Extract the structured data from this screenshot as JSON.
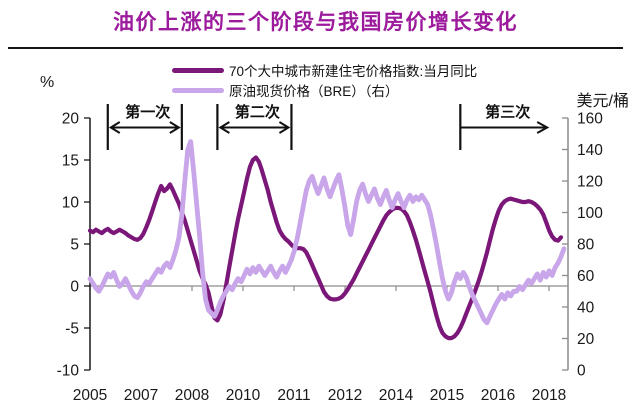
{
  "title": "油价上涨的三个阶段与我国房价增长变化",
  "legend": [
    {
      "label": "70个大中城市新建住宅价格指数:当月同比"
    },
    {
      "label": "原油现货价格（BRE）（右）"
    }
  ],
  "axes": {
    "left_unit": "%",
    "right_unit": "美元/桶",
    "left_ticks": [
      20,
      15,
      10,
      5,
      0,
      -5,
      -10
    ],
    "right_ticks": [
      160,
      140,
      120,
      100,
      80,
      60,
      40,
      20,
      0
    ],
    "x_labels": [
      "2005",
      "2007",
      "2008",
      "2010",
      "2011",
      "2012",
      "2014",
      "2015",
      "2016",
      "2018"
    ]
  },
  "annotations": [
    {
      "label": "第一次",
      "type": "double",
      "x1_month": 6,
      "x2_month": 31
    },
    {
      "label": "第二次",
      "type": "double",
      "x1_month": 43,
      "x2_month": 68
    },
    {
      "label": "第三次",
      "type": "right",
      "x1_month": 125,
      "x2_month": 155
    }
  ],
  "colors": {
    "title": "#9c1a9c",
    "house_series": "#7a1778",
    "oil_series": "#c8a6e9",
    "axis_black": "#1a1a1a",
    "axis_gray": "#8c8c8c",
    "annotation": "#111111"
  },
  "chart_data": {
    "type": "line",
    "title": "油价上涨的三个阶段与我国房价增长变化",
    "x_start_year": 2005,
    "frequency": "monthly",
    "x_tick_labels": [
      "2005",
      "2007",
      "2008",
      "2010",
      "2011",
      "2012",
      "2014",
      "2015",
      "2016",
      "2018"
    ],
    "ylabel_left": "%",
    "ylabel_right": "美元/桶",
    "ylim_left": [
      -10,
      20
    ],
    "ylim_right": [
      0,
      160
    ],
    "legend_position": "top",
    "grid": false,
    "series": [
      {
        "name": "70个大中城市新建住宅价格指数:当月同比",
        "axis": "left",
        "unit": "%",
        "values": [
          6.6,
          6.4,
          6.7,
          6.5,
          6.3,
          6.6,
          6.8,
          6.5,
          6.3,
          6.5,
          6.7,
          6.5,
          6.3,
          6.0,
          5.8,
          5.6,
          5.5,
          5.7,
          6.2,
          7.0,
          7.9,
          8.9,
          10.0,
          11.0,
          11.9,
          11.3,
          11.6,
          12.1,
          11.4,
          10.6,
          9.8,
          8.8,
          7.8,
          6.6,
          5.4,
          4.2,
          3.0,
          1.8,
          0.9,
          0.2,
          -0.8,
          -2.4,
          -3.8,
          -4.1,
          -3.4,
          -1.8,
          0.2,
          2.2,
          4.2,
          6.2,
          8.0,
          9.6,
          11.2,
          12.8,
          14.2,
          15.0,
          15.3,
          14.8,
          13.8,
          12.6,
          11.4,
          10.0,
          8.8,
          7.6,
          6.6,
          6.0,
          5.6,
          5.3,
          4.9,
          4.6,
          4.5,
          4.5,
          4.4,
          4.0,
          3.3,
          2.5,
          1.7,
          0.9,
          0.1,
          -0.7,
          -1.2,
          -1.5,
          -1.6,
          -1.6,
          -1.5,
          -1.3,
          -0.9,
          -0.4,
          0.2,
          0.8,
          1.5,
          2.2,
          2.9,
          3.6,
          4.3,
          5.0,
          5.7,
          6.4,
          7.1,
          7.8,
          8.4,
          8.8,
          9.1,
          9.3,
          9.3,
          9.2,
          8.9,
          8.4,
          7.6,
          6.6,
          5.5,
          4.3,
          3.0,
          1.7,
          0.5,
          -0.8,
          -2.2,
          -3.6,
          -4.8,
          -5.6,
          -6.0,
          -6.2,
          -6.2,
          -6.0,
          -5.6,
          -5.0,
          -4.2,
          -3.3,
          -2.4,
          -1.5,
          -0.6,
          0.4,
          1.5,
          2.7,
          4.0,
          5.4,
          6.8,
          8.0,
          9.0,
          9.7,
          10.1,
          10.3,
          10.4,
          10.3,
          10.2,
          10.1,
          10.0,
          10.0,
          10.1,
          10.0,
          9.8,
          9.5,
          9.1,
          8.5,
          7.6,
          6.6,
          5.9,
          5.5,
          5.4,
          5.8
        ]
      },
      {
        "name": "原油现货价格（BRE）",
        "axis": "right",
        "unit": "美元/桶",
        "values": [
          58,
          55,
          52,
          50,
          53,
          57,
          61,
          59,
          62,
          57,
          53,
          55,
          58,
          54,
          50,
          47,
          46,
          49,
          53,
          56,
          55,
          58,
          61,
          64,
          62,
          66,
          68,
          65,
          70,
          76,
          84,
          98,
          120,
          140,
          145,
          126,
          105,
          85,
          62,
          45,
          38,
          36,
          34,
          38,
          43,
          47,
          50,
          53,
          51,
          55,
          58,
          56,
          60,
          64,
          61,
          65,
          62,
          66,
          63,
          60,
          63,
          66,
          62,
          59,
          63,
          66,
          62,
          66,
          70,
          76,
          84,
          94,
          104,
          114,
          120,
          123,
          117,
          112,
          117,
          122,
          115,
          110,
          115,
          120,
          124,
          115,
          104,
          92,
          86,
          96,
          107,
          114,
          118,
          112,
          107,
          111,
          115,
          109,
          105,
          110,
          114,
          108,
          103,
          108,
          112,
          107,
          103,
          108,
          111,
          107,
          110,
          108,
          111,
          108,
          105,
          98,
          89,
          79,
          68,
          58,
          50,
          45,
          49,
          56,
          61,
          58,
          62,
          59,
          53,
          48,
          44,
          40,
          36,
          32,
          30,
          34,
          38,
          42,
          45,
          48,
          45,
          49,
          47,
          50,
          50,
          53,
          51,
          54,
          57,
          55,
          58,
          61,
          57,
          62,
          59,
          63,
          60,
          65,
          68,
          72,
          77
        ]
      }
    ]
  }
}
